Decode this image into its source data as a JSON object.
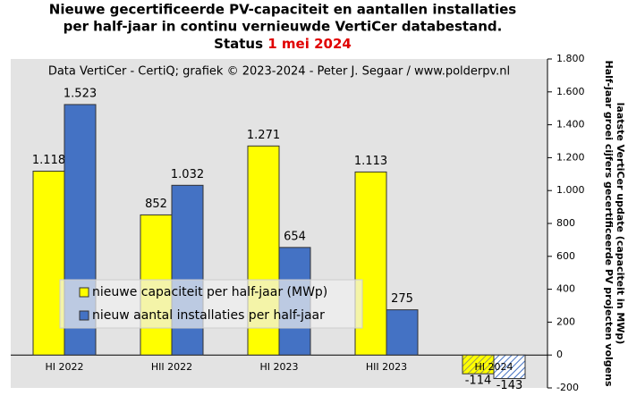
{
  "chart_data": {
    "type": "bar",
    "title_lines": [
      "Nieuwe gecertificeerde PV-capaciteit en aantallen installaties",
      "per half-jaar in continu vernieuwde VertiCer databestand."
    ],
    "status_label": "Status",
    "status_date": "1 mei 2024",
    "annotation": "Data VertiCer - CertiQ; grafiek © 2023-2024 - Peter J. Segaar / www.polderpv.nl",
    "y_label_lines": [
      "Half-jaar groei cijfers gecertificeerde PV projecten volgens",
      "laatste VertiCer update (capaciteit in MWp)"
    ],
    "categories": [
      "HI 2022",
      "HII 2022",
      "HI 2023",
      "HII 2023",
      "HI 2024"
    ],
    "series": [
      {
        "name": "nieuwe capaciteit per half-jaar (MWp)",
        "color": "#ffff00",
        "values": [
          1118,
          852,
          1271,
          1113,
          -114
        ],
        "value_labels": [
          "1.118",
          "852",
          "1.271",
          "1.113",
          "-114"
        ],
        "hatched": [
          false,
          false,
          false,
          false,
          true
        ]
      },
      {
        "name": "nieuw aantal installaties per half-jaar",
        "color": "#4472c4",
        "values": [
          1523,
          1032,
          654,
          275,
          -143
        ],
        "value_labels": [
          "1.523",
          "1.032",
          "654",
          "275",
          "-143"
        ],
        "hatched": [
          false,
          false,
          false,
          false,
          true
        ]
      }
    ],
    "ylim": [
      -200,
      1800
    ],
    "yticks": [
      {
        "value": 1800,
        "label": "1.800"
      },
      {
        "value": 1600,
        "label": "1.600"
      },
      {
        "value": 1400,
        "label": "1.400"
      },
      {
        "value": 1200,
        "label": "1.200"
      },
      {
        "value": 1000,
        "label": "1.000"
      },
      800,
      600,
      400,
      200,
      0,
      -200
    ],
    "grid": false,
    "legend": "bottom-left"
  }
}
